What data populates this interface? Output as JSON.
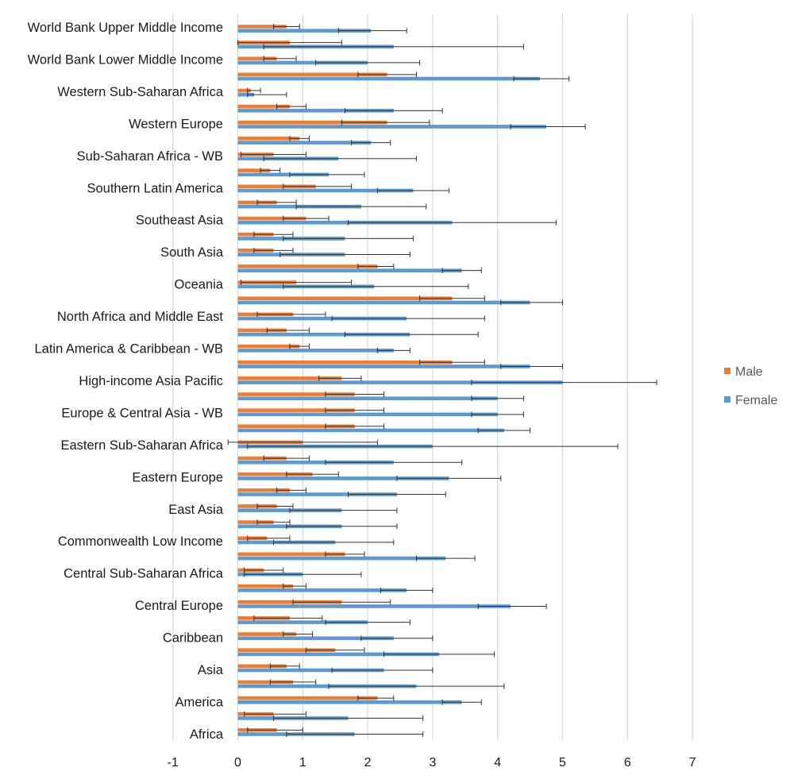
{
  "chart_data": {
    "type": "bar",
    "orientation": "horizontal",
    "title": "",
    "xlabel": "",
    "ylabel": "",
    "xlim": [
      -1,
      7
    ],
    "xticks": [
      "-1",
      "0",
      "1",
      "2",
      "3",
      "4",
      "5",
      "6",
      "7"
    ],
    "grid": "vertical",
    "legend": {
      "position": "right",
      "entries": [
        "Male",
        "Female"
      ]
    },
    "colors": {
      "Male": "#ED7D31",
      "Female": "#5B9BD5",
      "error_bar": "#333333",
      "grid": "#d9d9d9"
    },
    "category_labels": [
      "World Bank Upper Middle Income",
      "World Bank Lower Middle Income",
      "Western Sub-Saharan Africa",
      "Western Europe",
      "Sub-Saharan Africa - WB",
      "Southern Latin America",
      "Southeast Asia",
      "South Asia",
      "Oceania",
      "North Africa and Middle East",
      "Latin America & Caribbean - WB",
      "High-income Asia Pacific",
      "Europe & Central Asia - WB",
      "Eastern Sub-Saharan Africa",
      "Eastern Europe",
      "East Asia",
      "Commonwealth Low Income",
      "Central Sub-Saharan Africa",
      "Central Europe",
      "Caribbean",
      "Asia",
      "America",
      "Africa"
    ],
    "rows": [
      {
        "male": [
          0.75,
          0.55,
          0.95
        ],
        "female": [
          2.05,
          1.55,
          2.6
        ]
      },
      {
        "male": [
          0.8,
          0.0,
          1.6
        ],
        "female": [
          2.4,
          0.4,
          4.4
        ]
      },
      {
        "male": [
          0.6,
          0.4,
          0.9
        ],
        "female": [
          2.0,
          1.2,
          2.8
        ]
      },
      {
        "male": [
          2.3,
          1.85,
          2.75
        ],
        "female": [
          4.65,
          4.25,
          5.1
        ]
      },
      {
        "male": [
          0.2,
          0.15,
          0.35
        ],
        "female": [
          0.25,
          0.15,
          0.75
        ]
      },
      {
        "male": [
          0.8,
          0.6,
          1.05
        ],
        "female": [
          2.4,
          1.65,
          3.15
        ]
      },
      {
        "male": [
          2.3,
          1.6,
          2.95
        ],
        "female": [
          4.75,
          4.2,
          5.35
        ]
      },
      {
        "male": [
          0.95,
          0.8,
          1.1
        ],
        "female": [
          2.05,
          1.75,
          2.35
        ]
      },
      {
        "male": [
          0.55,
          0.05,
          1.05
        ],
        "female": [
          1.55,
          0.4,
          2.75
        ]
      },
      {
        "male": [
          0.5,
          0.35,
          0.65
        ],
        "female": [
          1.4,
          0.8,
          1.95
        ]
      },
      {
        "male": [
          1.2,
          0.7,
          1.75
        ],
        "female": [
          2.7,
          2.15,
          3.25
        ]
      },
      {
        "male": [
          0.6,
          0.3,
          0.9
        ],
        "female": [
          1.9,
          0.9,
          2.9
        ]
      },
      {
        "male": [
          1.05,
          0.7,
          1.4
        ],
        "female": [
          3.3,
          1.7,
          4.9
        ]
      },
      {
        "male": [
          0.55,
          0.25,
          0.85
        ],
        "female": [
          1.65,
          0.7,
          2.7
        ]
      },
      {
        "male": [
          0.55,
          0.25,
          0.85
        ],
        "female": [
          1.65,
          0.65,
          2.65
        ]
      },
      {
        "male": [
          2.15,
          1.85,
          2.4
        ],
        "female": [
          3.45,
          3.15,
          3.75
        ]
      },
      {
        "male": [
          0.9,
          0.05,
          1.75
        ],
        "female": [
          2.1,
          0.7,
          3.55
        ]
      },
      {
        "male": [
          3.3,
          2.8,
          3.8
        ],
        "female": [
          4.5,
          4.05,
          5.0
        ]
      },
      {
        "male": [
          0.85,
          0.3,
          1.35
        ],
        "female": [
          2.6,
          1.45,
          3.8
        ]
      },
      {
        "male": [
          0.75,
          0.45,
          1.1
        ],
        "female": [
          2.65,
          1.65,
          3.7
        ]
      },
      {
        "male": [
          0.95,
          0.8,
          1.1
        ],
        "female": [
          2.4,
          2.15,
          2.65
        ]
      },
      {
        "male": [
          3.3,
          2.8,
          3.8
        ],
        "female": [
          4.5,
          4.05,
          5.0
        ]
      },
      {
        "male": [
          1.6,
          1.25,
          1.9
        ],
        "female": [
          5.0,
          3.6,
          6.45
        ]
      },
      {
        "male": [
          1.8,
          1.35,
          2.25
        ],
        "female": [
          4.0,
          3.6,
          4.4
        ]
      },
      {
        "male": [
          1.8,
          1.35,
          2.25
        ],
        "female": [
          4.0,
          3.6,
          4.4
        ]
      },
      {
        "male": [
          1.8,
          1.35,
          2.25
        ],
        "female": [
          4.1,
          3.7,
          4.5
        ]
      },
      {
        "male": [
          1.0,
          -0.15,
          2.15
        ],
        "female": [
          3.0,
          0.15,
          5.85
        ]
      },
      {
        "male": [
          0.75,
          0.4,
          1.1
        ],
        "female": [
          2.4,
          1.35,
          3.45
        ]
      },
      {
        "male": [
          1.15,
          0.75,
          1.55
        ],
        "female": [
          3.25,
          2.45,
          4.05
        ]
      },
      {
        "male": [
          0.8,
          0.6,
          1.05
        ],
        "female": [
          2.45,
          1.7,
          3.2
        ]
      },
      {
        "male": [
          0.6,
          0.3,
          0.85
        ],
        "female": [
          1.6,
          0.8,
          2.45
        ]
      },
      {
        "male": [
          0.55,
          0.3,
          0.8
        ],
        "female": [
          1.6,
          0.75,
          2.45
        ]
      },
      {
        "male": [
          0.45,
          0.15,
          0.8
        ],
        "female": [
          1.5,
          0.55,
          2.4
        ]
      },
      {
        "male": [
          1.65,
          1.35,
          1.95
        ],
        "female": [
          3.2,
          2.75,
          3.65
        ]
      },
      {
        "male": [
          0.4,
          0.1,
          0.7
        ],
        "female": [
          1.0,
          0.1,
          1.9
        ]
      },
      {
        "male": [
          0.85,
          0.7,
          1.05
        ],
        "female": [
          2.6,
          2.2,
          3.0
        ]
      },
      {
        "male": [
          1.6,
          0.85,
          2.35
        ],
        "female": [
          4.2,
          3.7,
          4.75
        ]
      },
      {
        "male": [
          0.8,
          0.25,
          1.3
        ],
        "female": [
          2.0,
          1.35,
          2.65
        ]
      },
      {
        "male": [
          0.9,
          0.7,
          1.15
        ],
        "female": [
          2.4,
          1.9,
          3.0
        ]
      },
      {
        "male": [
          1.5,
          1.05,
          1.95
        ],
        "female": [
          3.1,
          2.25,
          3.95
        ]
      },
      {
        "male": [
          0.75,
          0.5,
          0.95
        ],
        "female": [
          2.25,
          1.45,
          3.0
        ]
      },
      {
        "male": [
          0.85,
          0.5,
          1.2
        ],
        "female": [
          2.75,
          1.4,
          4.1
        ]
      },
      {
        "male": [
          2.15,
          1.85,
          2.4
        ],
        "female": [
          3.45,
          3.15,
          3.75
        ]
      },
      {
        "male": [
          0.55,
          0.1,
          1.05
        ],
        "female": [
          1.7,
          0.55,
          2.85
        ]
      },
      {
        "male": [
          0.6,
          0.15,
          1.0
        ],
        "female": [
          1.8,
          0.75,
          2.85
        ]
      }
    ]
  }
}
